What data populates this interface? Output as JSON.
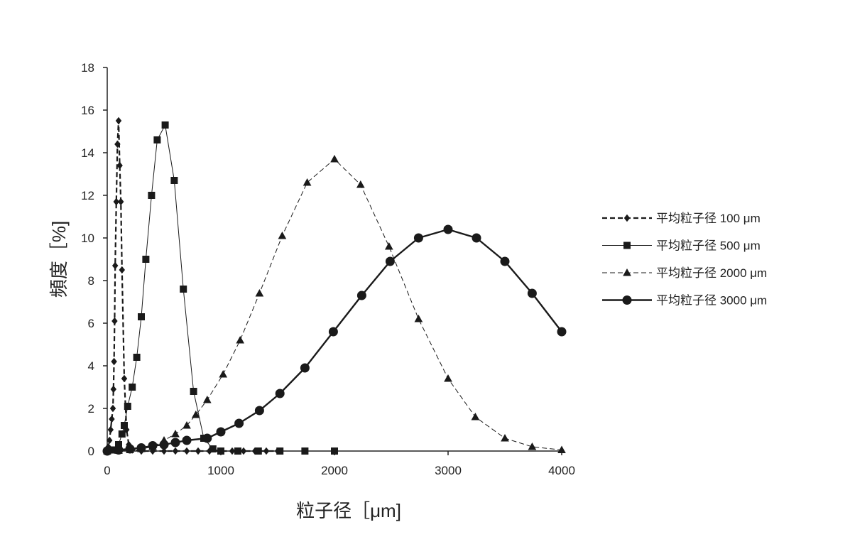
{
  "chart_data": {
    "type": "line",
    "xlabel": "粒子径［μm]",
    "ylabel": "頻度［%]",
    "xlim": [
      0,
      4000
    ],
    "ylim": [
      0,
      18
    ],
    "x_ticks": [
      0,
      1000,
      2000,
      3000,
      4000
    ],
    "y_ticks": [
      0,
      2,
      4,
      6,
      8,
      10,
      12,
      14,
      16,
      18
    ],
    "grid": false,
    "legend_position": "right",
    "series": [
      {
        "name": "平均粒子径 100 μm",
        "marker": "diamond",
        "line": "dashed-bold",
        "points": [
          [
            0,
            0.05
          ],
          [
            10,
            0.2
          ],
          [
            20,
            0.5
          ],
          [
            30,
            1.0
          ],
          [
            40,
            1.5
          ],
          [
            50,
            2.0
          ],
          [
            55,
            2.9
          ],
          [
            60,
            4.2
          ],
          [
            65,
            6.1
          ],
          [
            70,
            8.7
          ],
          [
            80,
            11.7
          ],
          [
            90,
            14.4
          ],
          [
            100,
            15.5
          ],
          [
            110,
            13.4
          ],
          [
            120,
            11.7
          ],
          [
            130,
            8.5
          ],
          [
            150,
            3.4
          ],
          [
            170,
            1.0
          ],
          [
            190,
            0.3
          ],
          [
            220,
            0.05
          ],
          [
            300,
            0.0
          ],
          [
            400,
            0.0
          ],
          [
            500,
            0.0
          ],
          [
            600,
            0.0
          ],
          [
            700,
            0.0
          ],
          [
            800,
            0.0
          ],
          [
            900,
            0.0
          ],
          [
            1000,
            0.0
          ],
          [
            1100,
            0.0
          ],
          [
            1200,
            0.0
          ],
          [
            1300,
            0.0
          ],
          [
            1400,
            0.0
          ],
          [
            1500,
            0.0
          ]
        ]
      },
      {
        "name": "平均粒子径 500 μm",
        "marker": "square",
        "line": "solid-thin",
        "points": [
          [
            0,
            0.0
          ],
          [
            50,
            0.05
          ],
          [
            100,
            0.3
          ],
          [
            130,
            0.8
          ],
          [
            150,
            1.2
          ],
          [
            180,
            2.1
          ],
          [
            220,
            3.0
          ],
          [
            260,
            4.4
          ],
          [
            300,
            6.3
          ],
          [
            340,
            9.0
          ],
          [
            390,
            12.0
          ],
          [
            440,
            14.6
          ],
          [
            510,
            15.3
          ],
          [
            590,
            12.7
          ],
          [
            670,
            7.6
          ],
          [
            760,
            2.8
          ],
          [
            850,
            0.6
          ],
          [
            930,
            0.1
          ],
          [
            1000,
            0.0
          ],
          [
            1150,
            0.0
          ],
          [
            1330,
            0.0
          ],
          [
            1520,
            0.0
          ],
          [
            1740,
            0.0
          ],
          [
            2000,
            0.0
          ]
        ]
      },
      {
        "name": "平均粒子径 2000 μm",
        "marker": "triangle",
        "line": "dashed-thin",
        "points": [
          [
            0,
            0.0
          ],
          [
            100,
            0.02
          ],
          [
            200,
            0.05
          ],
          [
            300,
            0.1
          ],
          [
            400,
            0.2
          ],
          [
            500,
            0.5
          ],
          [
            600,
            0.8
          ],
          [
            700,
            1.2
          ],
          [
            780,
            1.7
          ],
          [
            880,
            2.4
          ],
          [
            1020,
            3.6
          ],
          [
            1170,
            5.2
          ],
          [
            1340,
            7.4
          ],
          [
            1540,
            10.1
          ],
          [
            1760,
            12.6
          ],
          [
            2000,
            13.7
          ],
          [
            2230,
            12.5
          ],
          [
            2480,
            9.6
          ],
          [
            2740,
            6.2
          ],
          [
            3000,
            3.4
          ],
          [
            3240,
            1.6
          ],
          [
            3500,
            0.6
          ],
          [
            3740,
            0.2
          ],
          [
            4000,
            0.05
          ]
        ]
      },
      {
        "name": "平均粒子径 3000 μm",
        "marker": "circle",
        "line": "solid-bold",
        "points": [
          [
            0,
            0.0
          ],
          [
            100,
            0.05
          ],
          [
            200,
            0.1
          ],
          [
            300,
            0.15
          ],
          [
            400,
            0.25
          ],
          [
            500,
            0.3
          ],
          [
            600,
            0.4
          ],
          [
            700,
            0.5
          ],
          [
            880,
            0.6
          ],
          [
            1000,
            0.9
          ],
          [
            1160,
            1.3
          ],
          [
            1340,
            1.9
          ],
          [
            1520,
            2.7
          ],
          [
            1740,
            3.9
          ],
          [
            1990,
            5.6
          ],
          [
            2240,
            7.3
          ],
          [
            2490,
            8.9
          ],
          [
            2740,
            10.0
          ],
          [
            3000,
            10.4
          ],
          [
            3250,
            10.0
          ],
          [
            3500,
            8.9
          ],
          [
            3740,
            7.4
          ],
          [
            4000,
            5.6
          ]
        ]
      }
    ]
  }
}
